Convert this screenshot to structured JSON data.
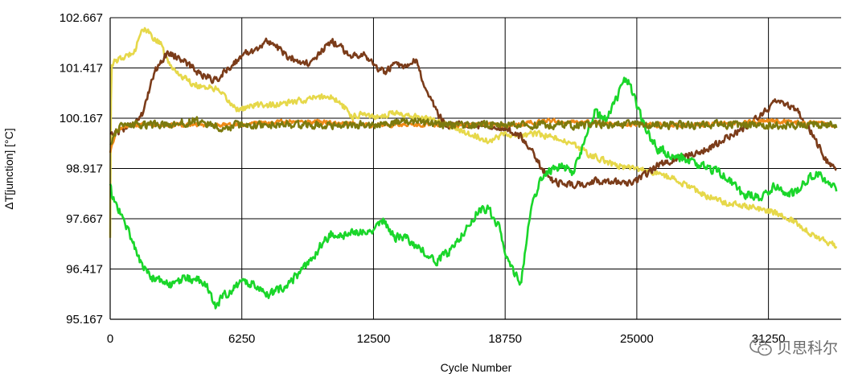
{
  "chart_data": {
    "type": "line",
    "title": "",
    "xlabel": "Cycle Number",
    "ylabel": "ΔT[junction] [°C]",
    "xlim": [
      0,
      34700
    ],
    "ylim": [
      95.167,
      102.667
    ],
    "xticks": [
      0,
      6250,
      12500,
      18750,
      25000,
      31250
    ],
    "xtick_labels": [
      "0",
      "6250",
      "12500",
      "18750",
      "25000",
      "31250"
    ],
    "yticks": [
      95.167,
      96.417,
      97.667,
      98.917,
      100.167,
      101.417,
      102.667
    ],
    "ytick_labels": [
      "95.167",
      "96.417",
      "97.667",
      "98.917",
      "100.167",
      "101.417",
      "102.667"
    ],
    "grid": true,
    "legend": "none",
    "series": [
      {
        "color": "#e6d84a",
        "x": [
          0,
          50,
          300,
          800,
          1200,
          1500,
          1800,
          2400,
          2800,
          3200,
          4000,
          5000,
          6000,
          6250,
          7000,
          8000,
          9000,
          10000,
          10500,
          11000,
          11500,
          12000,
          12500,
          13500,
          14500,
          15500,
          16500,
          17500,
          18000,
          18750,
          19500,
          20000,
          21000,
          22000,
          23000,
          24000,
          25000,
          26000,
          27000,
          28000,
          29000,
          30000,
          31000,
          31700,
          32500,
          33500,
          34500
        ],
        "y": [
          97.2,
          101.5,
          101.6,
          101.7,
          101.9,
          102.4,
          102.3,
          102.0,
          101.5,
          101.3,
          101.0,
          100.9,
          100.4,
          100.4,
          100.5,
          100.5,
          100.6,
          100.7,
          100.7,
          100.5,
          100.2,
          100.3,
          100.2,
          100.3,
          100.2,
          100.1,
          99.9,
          99.7,
          99.6,
          99.8,
          99.7,
          99.8,
          99.7,
          99.5,
          99.2,
          99.0,
          98.9,
          98.8,
          98.6,
          98.3,
          98.1,
          98.0,
          97.9,
          97.8,
          97.6,
          97.2,
          97.0
        ]
      },
      {
        "color": "#7b3c1a",
        "x": [
          0,
          200,
          600,
          1000,
          1600,
          2000,
          2400,
          2800,
          3500,
          4200,
          5000,
          6000,
          6500,
          7000,
          7500,
          8000,
          8400,
          9000,
          9500,
          10000,
          10500,
          11000,
          11500,
          12000,
          12500,
          13000,
          13500,
          14000,
          14500,
          15000,
          15500,
          16000,
          17000,
          18000,
          18750,
          19500,
          20000,
          20500,
          21000,
          22000,
          23000,
          24000,
          24500,
          25000,
          26000,
          27000,
          28000,
          29000,
          30000,
          31000,
          31700,
          32500,
          33000,
          33500,
          34000,
          34500
        ],
        "y": [
          99.8,
          99.8,
          99.9,
          100.0,
          100.3,
          101.2,
          101.6,
          101.8,
          101.6,
          101.3,
          101.1,
          101.6,
          101.8,
          101.9,
          102.1,
          101.9,
          101.7,
          101.6,
          101.5,
          101.8,
          102.1,
          101.9,
          101.7,
          101.8,
          101.5,
          101.3,
          101.5,
          101.4,
          101.6,
          100.9,
          100.3,
          100.0,
          100.0,
          100.0,
          99.9,
          99.7,
          99.4,
          98.9,
          98.6,
          98.5,
          98.6,
          98.6,
          98.5,
          98.6,
          99.0,
          99.2,
          99.3,
          99.6,
          99.9,
          100.3,
          100.6,
          100.4,
          100.1,
          99.6,
          99.1,
          98.9
        ]
      },
      {
        "color": "#f08a18",
        "x": [
          0,
          300,
          1000,
          3000,
          6000,
          9000,
          12500,
          15000,
          18750,
          21000,
          25000,
          28000,
          31250,
          34500
        ],
        "y": [
          99.3,
          99.9,
          100.0,
          100.0,
          100.0,
          100.1,
          100.0,
          100.0,
          100.0,
          100.1,
          100.0,
          100.0,
          100.1,
          100.0
        ]
      },
      {
        "color": "#1ad62a",
        "x": [
          0,
          100,
          500,
          1000,
          1500,
          2000,
          2500,
          3000,
          3500,
          4500,
          5000,
          5500,
          6250,
          7000,
          7500,
          8000,
          8500,
          9000,
          9500,
          10000,
          10500,
          11000,
          12000,
          12500,
          13000,
          13500,
          14000,
          14500,
          15000,
          15500,
          16000,
          17000,
          17500,
          18000,
          18500,
          18750,
          19200,
          19500,
          20000,
          20500,
          21000,
          21500,
          22000,
          22500,
          23000,
          23500,
          24000,
          24500,
          25000,
          25500,
          26000,
          27000,
          28000,
          29000,
          30000,
          31000,
          31500,
          32000,
          32500,
          33000,
          33500,
          34000,
          34500
        ],
        "y": [
          98.5,
          98.2,
          97.8,
          97.2,
          96.5,
          96.2,
          96.1,
          96.0,
          96.2,
          96.1,
          95.5,
          95.8,
          96.1,
          96.0,
          95.8,
          95.9,
          96.1,
          96.3,
          96.6,
          97.0,
          97.3,
          97.2,
          97.4,
          97.4,
          97.6,
          97.2,
          97.2,
          97.0,
          96.8,
          96.6,
          96.8,
          97.5,
          97.9,
          97.9,
          97.4,
          96.8,
          96.3,
          96.0,
          98.0,
          98.7,
          98.9,
          99.0,
          98.8,
          99.6,
          100.3,
          100.1,
          100.6,
          101.2,
          100.5,
          99.8,
          99.4,
          99.2,
          99.0,
          98.8,
          98.3,
          98.2,
          98.5,
          98.3,
          98.3,
          98.6,
          98.8,
          98.6,
          98.4
        ]
      },
      {
        "color": "#7c7a0e",
        "x": [
          0,
          300,
          1000,
          2000,
          3000,
          4000,
          5000,
          5200,
          6000,
          8000,
          10000,
          12500,
          14000,
          16000,
          18750,
          21000,
          23000,
          25000,
          27000,
          29000,
          31250,
          33000,
          34500
        ],
        "y": [
          99.5,
          99.9,
          100.0,
          100.0,
          100.0,
          100.1,
          100.0,
          99.8,
          100.0,
          100.0,
          100.0,
          100.0,
          100.1,
          100.0,
          100.0,
          100.0,
          100.0,
          100.0,
          100.0,
          100.0,
          100.0,
          100.0,
          100.0
        ]
      }
    ]
  },
  "watermark": {
    "text": "贝思科尔",
    "icon": "wechat-icon"
  }
}
